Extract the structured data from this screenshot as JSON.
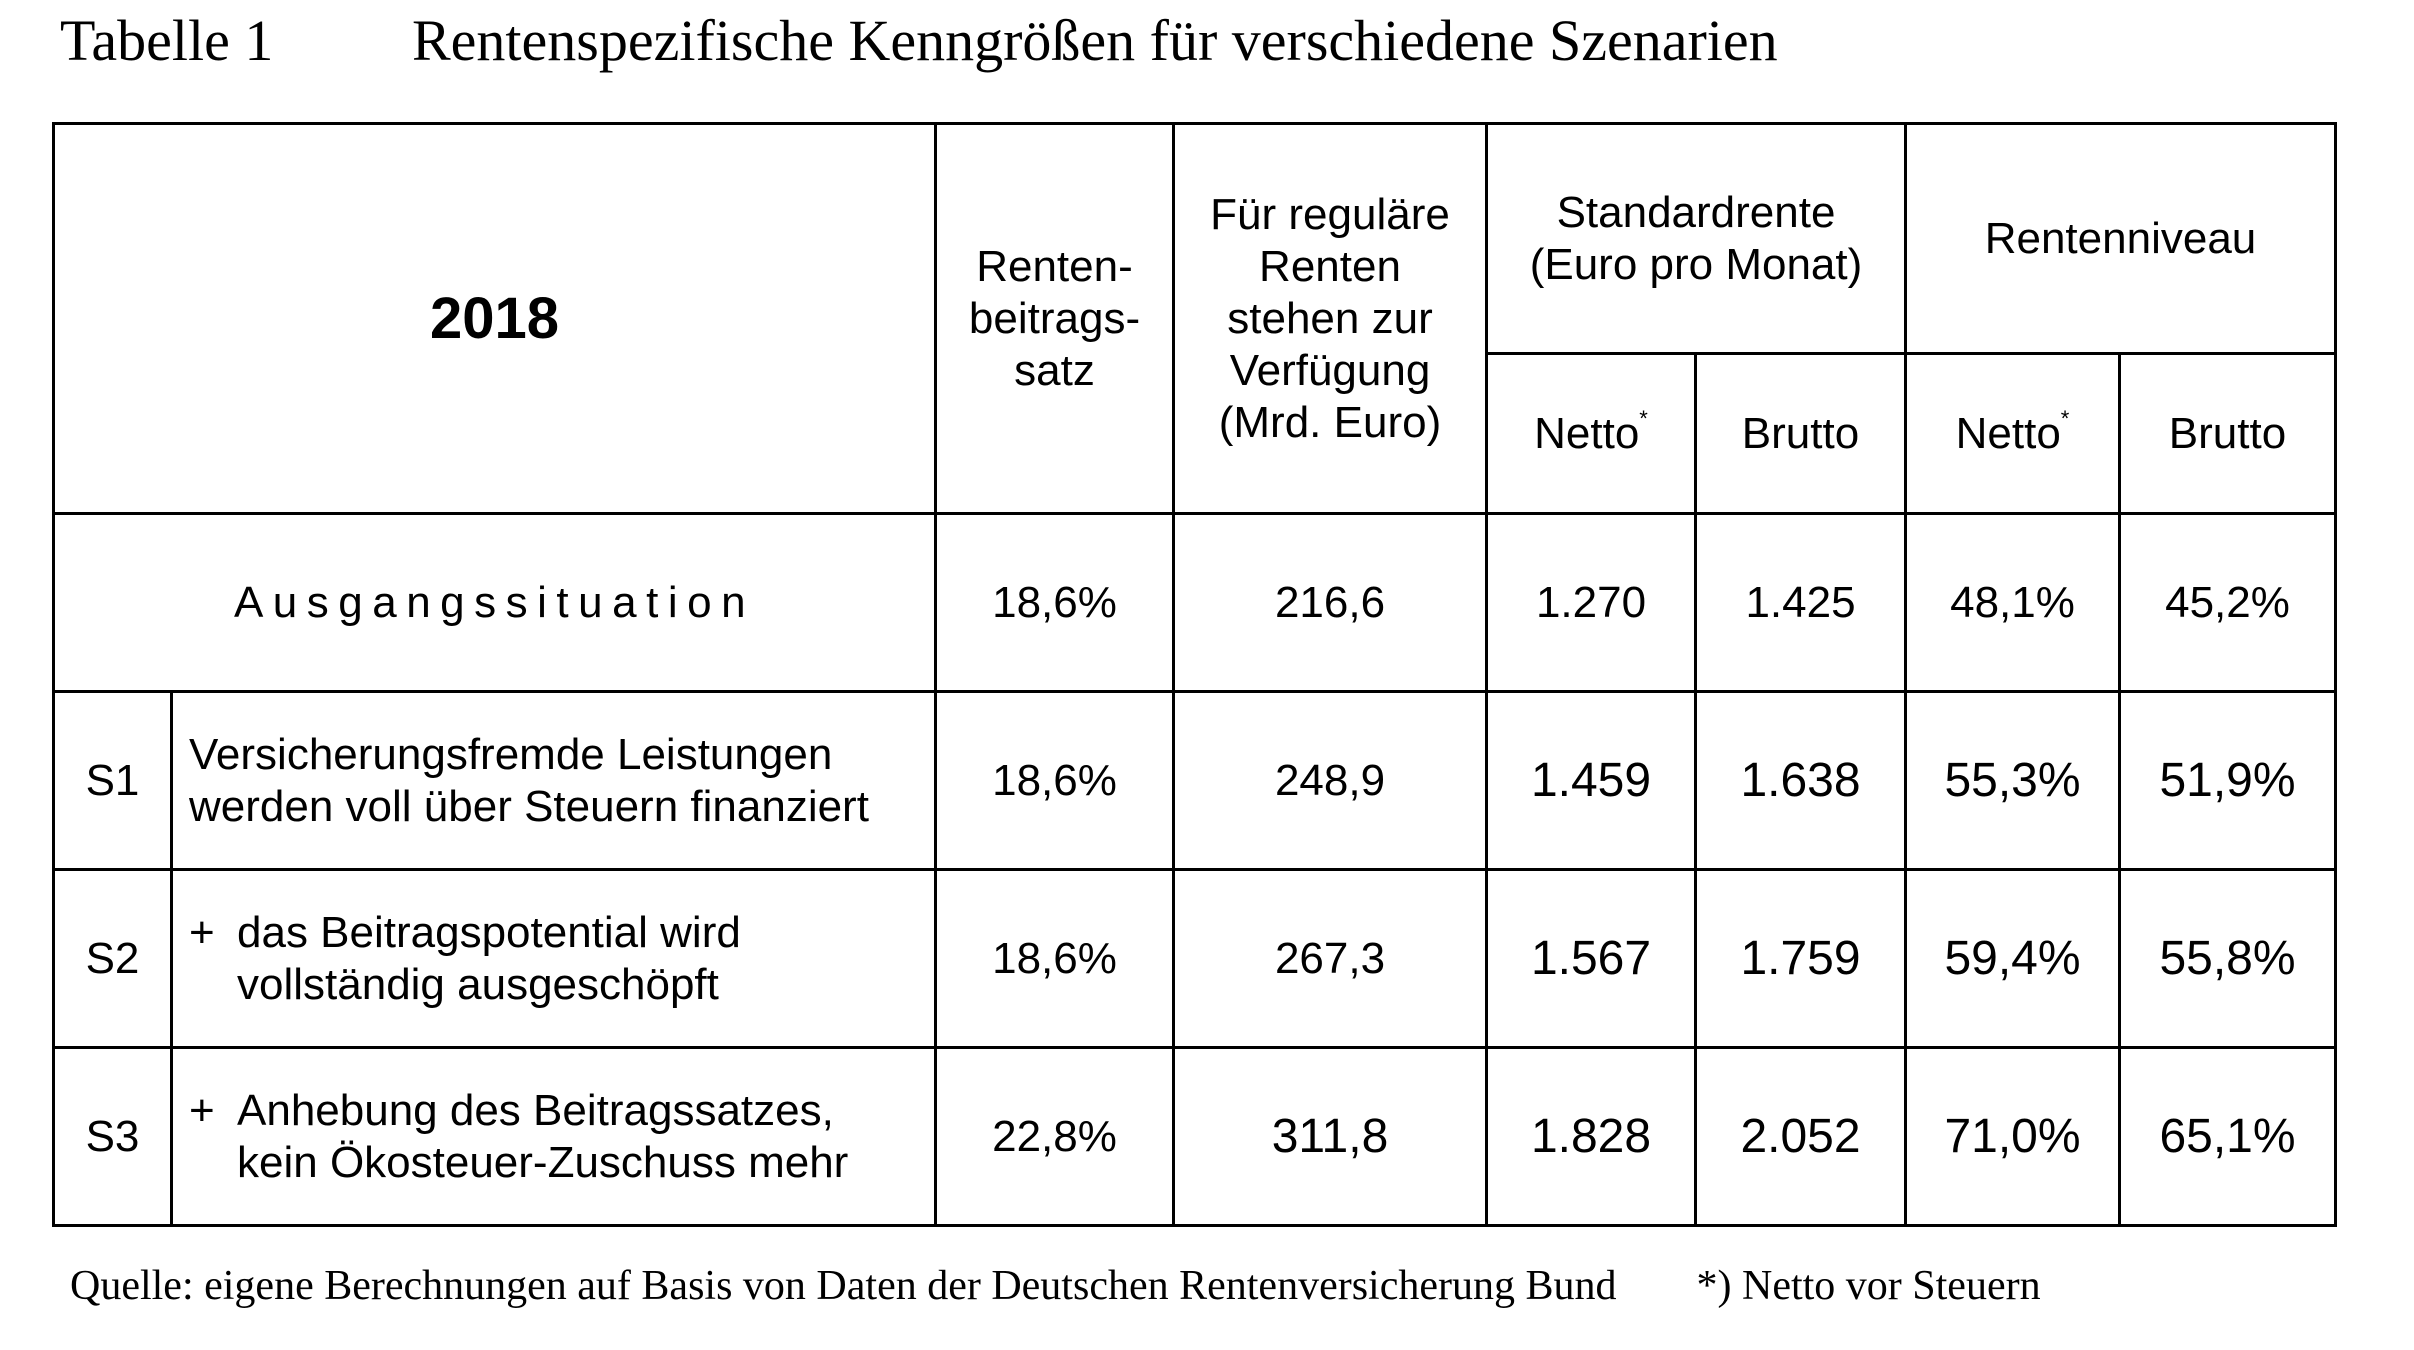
{
  "caption": {
    "number": "Tabelle 1",
    "title": "Rentenspezifische Kenngrößen für verschiedene Szenarien"
  },
  "header": {
    "year": "2018",
    "col_beitragssatz": [
      "Renten-",
      "beitrags-",
      "satz"
    ],
    "col_verfuegung": [
      "Für reguläre",
      "Renten",
      "stehen zur",
      "Verfügung",
      "(Mrd. Euro)"
    ],
    "col_standardrente": [
      "Standardrente",
      "(Euro pro Monat)"
    ],
    "col_rentenniveau": "Rentenniveau",
    "sub_netto": "Netto",
    "sub_netto_mark": "*",
    "sub_brutto": "Brutto"
  },
  "baseline": {
    "label": "Ausgangssituation",
    "beitragssatz": "18,6%",
    "verfuegung": "216,6",
    "standard_netto": "1.270",
    "standard_brutto": "1.425",
    "niveau_netto": "48,1%",
    "niveau_brutto": "45,2%"
  },
  "scenarios": [
    {
      "id": "S1",
      "plus": "",
      "lines": [
        "Versicherungsfremde Leistungen",
        "werden voll über Steuern finanziert"
      ],
      "beitragssatz": "18,6%",
      "verfuegung": "248,9",
      "standard_netto": "1.459",
      "standard_brutto": "1.638",
      "niveau_netto": "55,3%",
      "niveau_brutto": "51,9%"
    },
    {
      "id": "S2",
      "plus": "+",
      "lines": [
        "das Beitragspotential wird",
        "vollständig ausgeschöpft"
      ],
      "beitragssatz": "18,6%",
      "verfuegung": "267,3",
      "standard_netto": "1.567",
      "standard_brutto": "1.759",
      "niveau_netto": "59,4%",
      "niveau_brutto": "55,8%"
    },
    {
      "id": "S3",
      "plus": "+",
      "lines": [
        "Anhebung des Beitragssatzes,",
        "kein Ökosteuer-Zuschuss mehr"
      ],
      "beitragssatz": "22,8%",
      "verfuegung": "311,8",
      "standard_netto": "1.828",
      "standard_brutto": "2.052",
      "niveau_netto": "71,0%",
      "niveau_brutto": "65,1%"
    }
  ],
  "footer": {
    "source": "Quelle: eigene Berechnungen auf Basis von Daten der Deutschen Rentenversicherung Bund",
    "note": "*) Netto vor Steuern"
  }
}
